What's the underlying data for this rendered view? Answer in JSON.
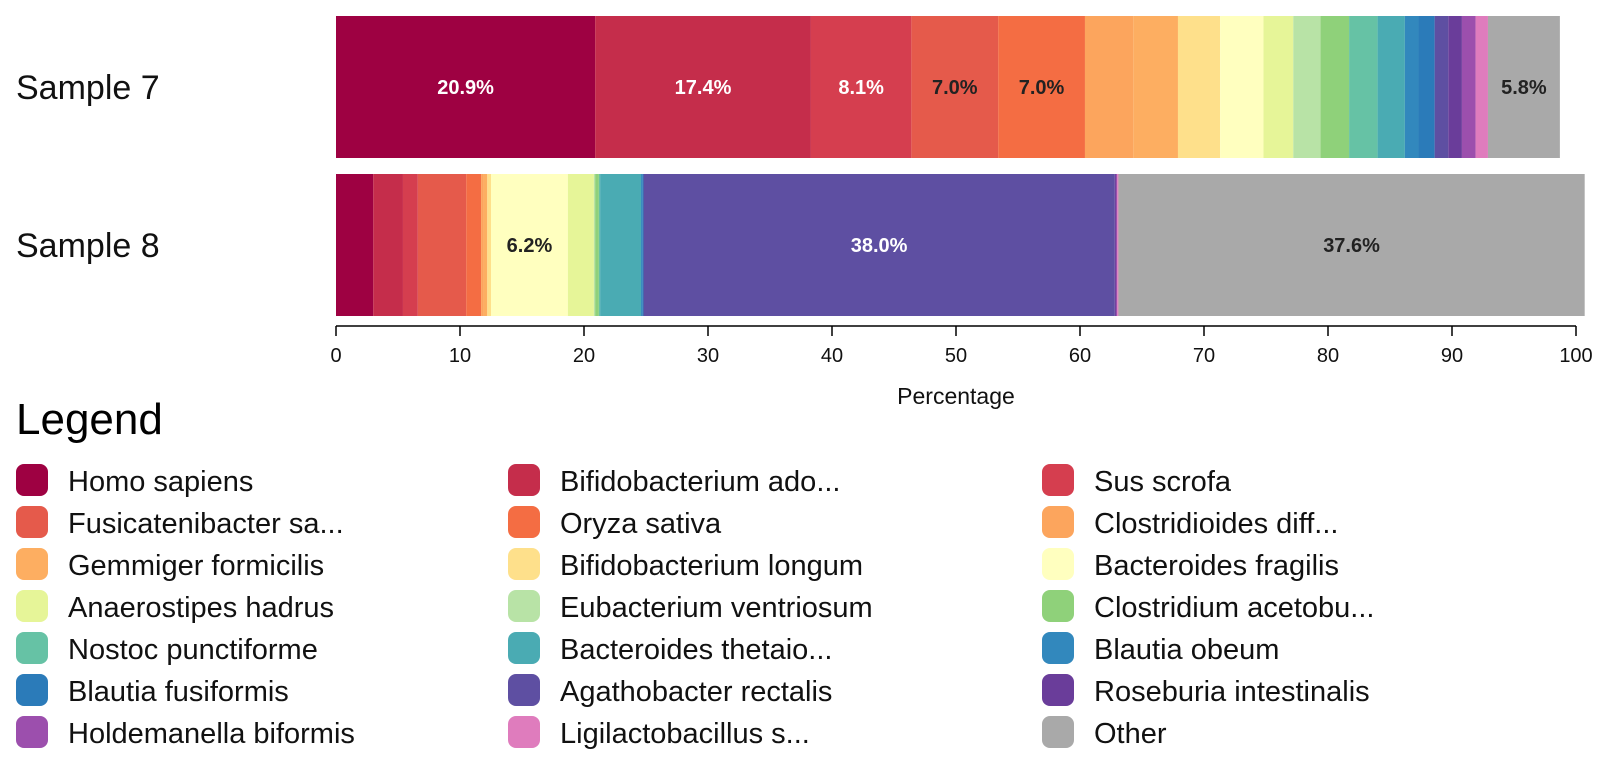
{
  "chart_data": {
    "type": "bar",
    "orientation": "horizontal",
    "stacked": true,
    "xlabel": "Percentage",
    "xlim": [
      0,
      100
    ],
    "xticks": [
      "0",
      "10",
      "20",
      "30",
      "40",
      "50",
      "60",
      "70",
      "80",
      "90",
      "100"
    ],
    "categories": [
      "Sample 7",
      "Sample 8"
    ],
    "legend_title": "Legend",
    "legend_placement": "bottom",
    "grid": false,
    "series": [
      {
        "name": "Homo sapiens",
        "color": "#9e0142",
        "values": [
          20.9,
          3.0
        ]
      },
      {
        "name": "Bifidobacterium ado...",
        "color": "#c52d4b",
        "values": [
          17.4,
          2.4
        ]
      },
      {
        "name": "Sus scrofa",
        "color": "#d53e4f",
        "values": [
          8.1,
          1.2
        ]
      },
      {
        "name": "Fusicatenibacter sa...",
        "color": "#e55a4b",
        "values": [
          7.0,
          3.9
        ]
      },
      {
        "name": "Oryza sativa",
        "color": "#f46d43",
        "values": [
          7.0,
          1.2
        ]
      },
      {
        "name": "Clostridioides diff...",
        "color": "#fca55d",
        "values": [
          3.9,
          0.2
        ]
      },
      {
        "name": "Gemmiger formicilis",
        "color": "#fdae61",
        "values": [
          3.6,
          0.3
        ]
      },
      {
        "name": "Bifidobacterium longum",
        "color": "#fee08b",
        "values": [
          3.4,
          0.3
        ]
      },
      {
        "name": "Bacteroides fragilis",
        "color": "#ffffbf",
        "values": [
          3.5,
          6.2
        ]
      },
      {
        "name": "Anaerostipes hadrus",
        "color": "#e6f598",
        "values": [
          2.4,
          2.1
        ]
      },
      {
        "name": "Eubacterium ventriosum",
        "color": "#b8e3a6",
        "values": [
          2.2,
          0.1
        ]
      },
      {
        "name": "Clostridium acetobu...",
        "color": "#8fd17a",
        "values": [
          2.3,
          0.3
        ]
      },
      {
        "name": "Nostoc punctiforme",
        "color": "#66c2a5",
        "values": [
          2.3,
          0.1
        ]
      },
      {
        "name": "Bacteroides thetaio...",
        "color": "#4aabb3",
        "values": [
          2.2,
          3.3
        ]
      },
      {
        "name": "Blautia obeum",
        "color": "#3288bd",
        "values": [
          1.1,
          0.1
        ]
      },
      {
        "name": "Blautia fusiformis",
        "color": "#2b7bb9",
        "values": [
          1.3,
          0.1
        ]
      },
      {
        "name": "Agathobacter rectalis",
        "color": "#5e4fa2",
        "values": [
          1.1,
          38.0
        ]
      },
      {
        "name": "Roseburia intestinalis",
        "color": "#6a3d9a",
        "values": [
          1.1,
          0.1
        ]
      },
      {
        "name": "Holdemanella biformis",
        "color": "#9c4fad",
        "values": [
          1.1,
          0.1
        ]
      },
      {
        "name": "Ligilactobacillus s...",
        "color": "#df7cbd",
        "values": [
          1.0,
          0.1
        ]
      },
      {
        "name": "Other",
        "color": "#a9a9a9",
        "values": [
          5.8,
          37.6
        ]
      }
    ],
    "data_labels": [
      [
        "20.9%",
        "17.4%",
        "8.1%",
        "7.0%",
        "7.0%",
        null,
        null,
        null,
        null,
        null,
        null,
        null,
        null,
        null,
        null,
        null,
        null,
        null,
        null,
        null,
        "5.8%"
      ],
      [
        null,
        null,
        null,
        null,
        null,
        null,
        null,
        null,
        "6.2%",
        null,
        null,
        null,
        null,
        null,
        null,
        null,
        "38.0%",
        null,
        null,
        null,
        "37.6%"
      ]
    ]
  }
}
